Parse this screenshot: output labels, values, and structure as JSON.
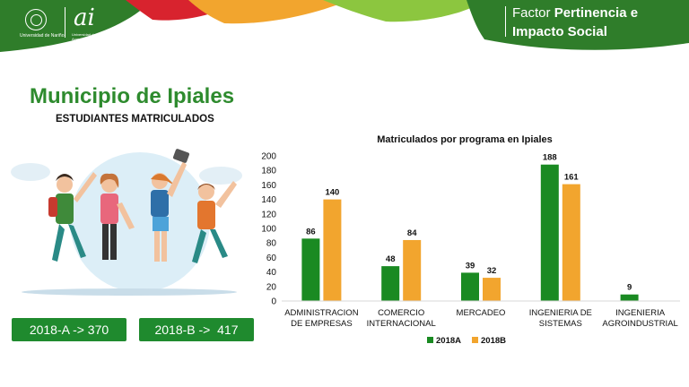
{
  "header": {
    "university_name": "Universidad de Nariño",
    "ai_mark": "ai",
    "ai_subtext": "Universidad de Nariño · Acreditación Institucional",
    "factor_title_light": "Factor",
    "factor_title_line1_bold": "Pertinencia e",
    "factor_title_line2": "Impacto Social"
  },
  "page": {
    "title": "Municipio de Ipiales",
    "subtitle": "ESTUDIANTES MATRICULADOS"
  },
  "totals": [
    {
      "label": "2018-A -> 370"
    },
    {
      "label": "2018-B ->  417"
    }
  ],
  "colors": {
    "green_primary": "#1f8a2e",
    "title_green": "#2e8b2e",
    "series_2018A": "#1a8a22",
    "series_2018B": "#f2a52e"
  },
  "chart_data": {
    "type": "bar",
    "title": "Matriculados por programa en Ipiales",
    "categories": [
      [
        "ADMINISTRACION",
        "DE EMPRESAS"
      ],
      [
        "COMERCIO",
        "INTERNACIONAL"
      ],
      [
        "MERCADEO"
      ],
      [
        "INGENIERIA DE",
        "SISTEMAS"
      ],
      [
        "INGENIERIA",
        "AGROINDUSTRIAL"
      ]
    ],
    "series": [
      {
        "name": "2018A",
        "color": "#1a8a22",
        "values": [
          86,
          48,
          39,
          188,
          9
        ]
      },
      {
        "name": "2018B",
        "color": "#f2a52e",
        "values": [
          140,
          84,
          32,
          161,
          null
        ]
      }
    ],
    "ylim": [
      0,
      200
    ],
    "yticks": [
      0,
      20,
      40,
      60,
      80,
      100,
      120,
      140,
      160,
      180,
      200
    ],
    "grid": false,
    "legend_position": "bottom"
  }
}
